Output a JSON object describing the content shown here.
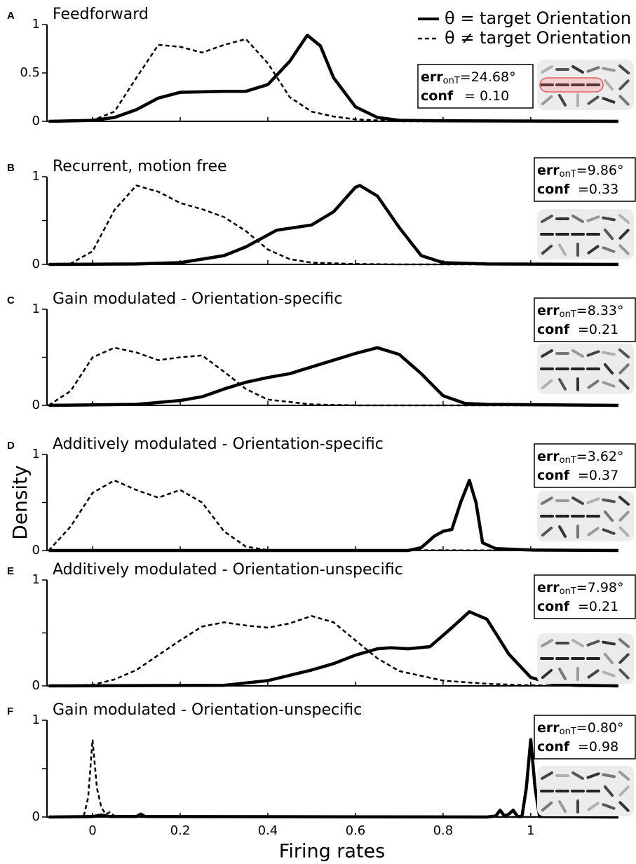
{
  "err_label": "err",
  "err_subscript": "onT",
  "conf_label": "conf",
  "chart_data": [
    {
      "type": "line",
      "letter": "A",
      "title": "Feedforward",
      "xlim": [
        -0.104,
        1.197
      ],
      "xticks": [
        0,
        0.2,
        0.4,
        0.6,
        0.8,
        1
      ],
      "ylim": [
        0,
        1
      ],
      "yticks": [
        0,
        0.5,
        1
      ],
      "annotation": {
        "err": "=24.68°",
        "conf": "= 0.10"
      },
      "legend": "upper right",
      "series": [
        {
          "name": "θ = target Orientation",
          "color": "#000000",
          "style": "solid",
          "x": [
            -0.1,
            0,
            0.05,
            0.1,
            0.15,
            0.2,
            0.3,
            0.35,
            0.4,
            0.45,
            0.49,
            0.52,
            0.55,
            0.6,
            0.65,
            0.7,
            0.8,
            1.2
          ],
          "values": [
            0,
            0.01,
            0.04,
            0.12,
            0.24,
            0.3,
            0.31,
            0.31,
            0.38,
            0.62,
            0.89,
            0.78,
            0.45,
            0.15,
            0.04,
            0.01,
            0.005,
            0
          ]
        },
        {
          "name": "θ ≠ target Orientation",
          "color": "#000000",
          "style": "dashed",
          "x": [
            -0.1,
            0,
            0.05,
            0.1,
            0.15,
            0.2,
            0.25,
            0.3,
            0.35,
            0.4,
            0.45,
            0.5,
            0.55,
            0.6,
            0.7,
            1.2
          ],
          "values": [
            0,
            0.01,
            0.1,
            0.45,
            0.79,
            0.77,
            0.71,
            0.79,
            0.85,
            0.6,
            0.25,
            0.1,
            0.05,
            0.02,
            0,
            0
          ]
        }
      ]
    },
    {
      "type": "line",
      "letter": "B",
      "title": "Recurrent, motion free",
      "xlim": [
        -0.104,
        1.197
      ],
      "xticks": [
        0,
        0.2,
        0.4,
        0.6,
        0.8,
        1
      ],
      "ylim": [
        0,
        1
      ],
      "yticks": [
        0,
        1
      ],
      "minor_yticks": [
        0.5
      ],
      "annotation": {
        "err": "=9.86°",
        "conf": "=0.33"
      },
      "series": [
        {
          "color": "#000000",
          "style": "solid",
          "x": [
            -0.1,
            0.1,
            0.2,
            0.3,
            0.35,
            0.42,
            0.5,
            0.55,
            0.6,
            0.61,
            0.65,
            0.7,
            0.75,
            0.8,
            0.9,
            1.2
          ],
          "values": [
            0,
            0.005,
            0.02,
            0.1,
            0.2,
            0.39,
            0.45,
            0.6,
            0.88,
            0.9,
            0.78,
            0.42,
            0.1,
            0.02,
            0.005,
            0
          ]
        },
        {
          "color": "#000000",
          "style": "dashed",
          "x": [
            -0.1,
            -0.05,
            0,
            0.05,
            0.1,
            0.15,
            0.2,
            0.25,
            0.3,
            0.35,
            0.4,
            0.45,
            0.5,
            0.6,
            0.7,
            1.2
          ],
          "values": [
            0,
            0.01,
            0.15,
            0.62,
            0.9,
            0.83,
            0.7,
            0.63,
            0.54,
            0.38,
            0.17,
            0.06,
            0.02,
            0.005,
            0,
            0
          ]
        }
      ]
    },
    {
      "type": "line",
      "letter": "C",
      "title": "Gain modulated - Orientation-specific",
      "xlim": [
        -0.104,
        1.197
      ],
      "xticks": [
        0,
        0.2,
        0.4,
        0.6,
        0.8,
        1
      ],
      "ylim": [
        0,
        1
      ],
      "yticks": [
        0,
        1
      ],
      "minor_yticks": [
        0.5
      ],
      "annotation": {
        "err": "=8.33°",
        "conf": "=0.21"
      },
      "series": [
        {
          "color": "#000000",
          "style": "solid",
          "x": [
            -0.1,
            0,
            0.1,
            0.2,
            0.25,
            0.3,
            0.35,
            0.4,
            0.45,
            0.5,
            0.6,
            0.65,
            0.7,
            0.75,
            0.8,
            0.85,
            0.9,
            1.2
          ],
          "values": [
            0,
            0.005,
            0.01,
            0.05,
            0.09,
            0.17,
            0.24,
            0.29,
            0.33,
            0.4,
            0.54,
            0.6,
            0.53,
            0.33,
            0.1,
            0.02,
            0.01,
            0
          ]
        },
        {
          "color": "#000000",
          "style": "dashed",
          "x": [
            -0.1,
            -0.05,
            0,
            0.05,
            0.1,
            0.15,
            0.2,
            0.25,
            0.3,
            0.35,
            0.4,
            0.5,
            0.6,
            1.2
          ],
          "values": [
            0,
            0.15,
            0.5,
            0.6,
            0.55,
            0.47,
            0.5,
            0.52,
            0.35,
            0.17,
            0.06,
            0.01,
            0,
            0
          ]
        }
      ]
    },
    {
      "type": "line",
      "letter": "D",
      "title": "Additively modulated - Orientation-specific",
      "ylabel": "Density",
      "xlim": [
        -0.104,
        1.197
      ],
      "xticks": [
        0,
        0.2,
        0.4,
        0.6,
        0.8,
        1
      ],
      "ylim": [
        0,
        1
      ],
      "yticks": [
        0,
        1
      ],
      "minor_yticks": [
        0.5
      ],
      "annotation": {
        "err": "=3.62°",
        "conf": "=0.37"
      },
      "series": [
        {
          "color": "#000000",
          "style": "solid",
          "x": [
            -0.1,
            0.72,
            0.75,
            0.78,
            0.8,
            0.82,
            0.84,
            0.86,
            0.875,
            0.89,
            0.92,
            1,
            1.2
          ],
          "values": [
            0,
            0,
            0.03,
            0.15,
            0.2,
            0.22,
            0.5,
            0.73,
            0.5,
            0.08,
            0.02,
            0.005,
            0
          ]
        },
        {
          "color": "#000000",
          "style": "dashed",
          "x": [
            -0.1,
            -0.05,
            0,
            0.05,
            0.1,
            0.15,
            0.2,
            0.25,
            0.3,
            0.35,
            0.4,
            1.2
          ],
          "values": [
            0,
            0.25,
            0.6,
            0.73,
            0.63,
            0.55,
            0.63,
            0.5,
            0.2,
            0.04,
            0.005,
            0
          ]
        }
      ]
    },
    {
      "type": "line",
      "letter": "E",
      "title": "Additively modulated - Orientation-unspecific",
      "xlim": [
        -0.104,
        1.197
      ],
      "xticks": [
        0,
        0.2,
        0.4,
        0.6,
        0.8,
        1
      ],
      "ylim": [
        0,
        1
      ],
      "yticks": [
        0,
        1
      ],
      "minor_yticks": [
        0.5
      ],
      "annotation": {
        "err": "=7.98°",
        "conf": "=0.21"
      },
      "series": [
        {
          "color": "#000000",
          "style": "solid",
          "x": [
            -0.1,
            0.3,
            0.4,
            0.5,
            0.55,
            0.6,
            0.65,
            0.68,
            0.72,
            0.77,
            0.82,
            0.86,
            0.9,
            0.95,
            1,
            1.05,
            1.1,
            1.2
          ],
          "values": [
            0,
            0.005,
            0.05,
            0.15,
            0.21,
            0.29,
            0.35,
            0.36,
            0.35,
            0.37,
            0.55,
            0.7,
            0.63,
            0.3,
            0.08,
            0.02,
            0.005,
            0
          ]
        },
        {
          "color": "#000000",
          "style": "dashed",
          "x": [
            -0.1,
            0,
            0.05,
            0.1,
            0.15,
            0.2,
            0.25,
            0.3,
            0.35,
            0.4,
            0.45,
            0.5,
            0.55,
            0.6,
            0.65,
            0.7,
            0.8,
            0.9,
            1,
            1.2
          ],
          "values": [
            0,
            0.01,
            0.06,
            0.15,
            0.29,
            0.43,
            0.56,
            0.6,
            0.57,
            0.55,
            0.59,
            0.66,
            0.6,
            0.43,
            0.26,
            0.14,
            0.05,
            0.02,
            0.005,
            0
          ]
        }
      ]
    },
    {
      "type": "line",
      "letter": "F",
      "title": "Gain modulated - Orientation-unspecific",
      "xlabel": "Firing rates",
      "show_xtick_labels": true,
      "xlim": [
        -0.104,
        1.197
      ],
      "xticks": [
        0,
        0.2,
        0.4,
        0.6,
        0.8,
        1
      ],
      "ylim": [
        0,
        1
      ],
      "yticks": [
        0,
        1
      ],
      "minor_yticks": [
        0.5
      ],
      "annotation": {
        "err": "=0.80°",
        "conf": "=0.98"
      },
      "series": [
        {
          "color": "#000000",
          "style": "solid",
          "x": [
            -0.1,
            0,
            0.02,
            0.04,
            0.1,
            0.11,
            0.12,
            0.9,
            0.92,
            0.93,
            0.94,
            0.95,
            0.96,
            0.97,
            0.98,
            0.99,
            1,
            1.01,
            1.02,
            1.2
          ],
          "values": [
            0,
            0.005,
            0.02,
            0.005,
            0.005,
            0.03,
            0.005,
            0,
            0.01,
            0.07,
            0.01,
            0.03,
            0.07,
            0.005,
            0.005,
            0.3,
            0.8,
            0.3,
            0.005,
            0
          ]
        },
        {
          "color": "#000000",
          "style": "dashed",
          "x": [
            -0.1,
            -0.02,
            -0.01,
            0,
            0.01,
            0.02,
            0.03,
            0.04,
            0.05,
            0.1,
            1.2
          ],
          "values": [
            0,
            0.01,
            0.2,
            0.8,
            0.3,
            0.1,
            0.03,
            0.05,
            0.01,
            0,
            0
          ]
        }
      ]
    }
  ]
}
